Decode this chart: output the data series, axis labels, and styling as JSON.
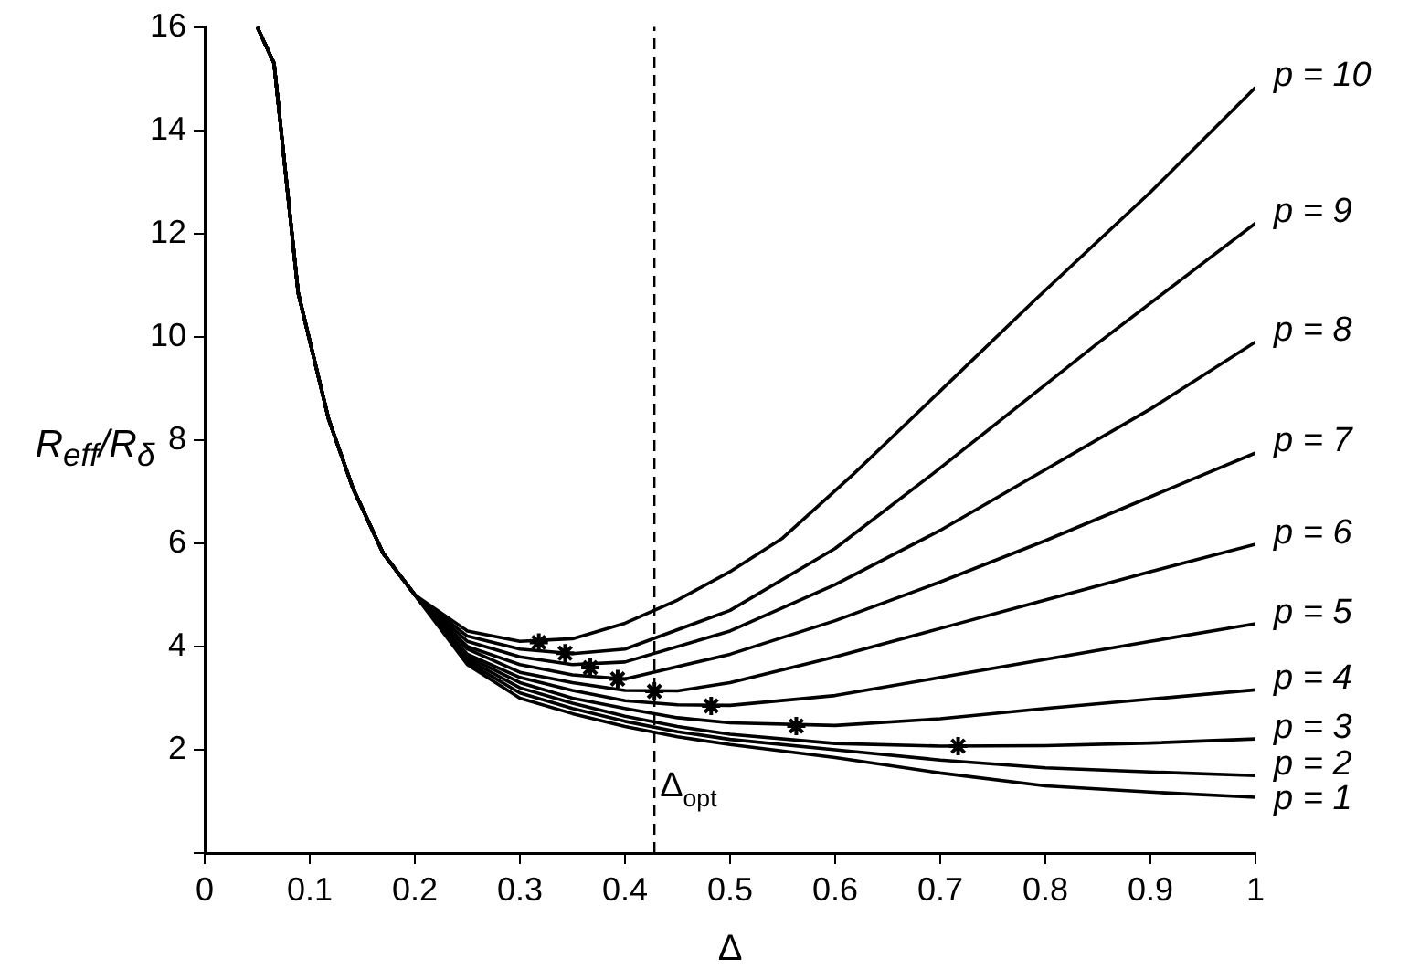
{
  "chart_data": {
    "type": "line",
    "xlabel": "Δ",
    "ylabel": "R$_{eff}$/R$_{δ}$",
    "xlim": [
      0,
      1
    ],
    "xticks": [
      0,
      0.1,
      0.2,
      0.3,
      0.4,
      0.5,
      0.6,
      0.7,
      0.8,
      0.9,
      1
    ],
    "ylim": [
      0,
      16
    ],
    "yticks": [
      {
        "value": 0,
        "label": null
      },
      2,
      4,
      6,
      8,
      10,
      12,
      14,
      16
    ],
    "grid": false,
    "legend": false,
    "marker": "none",
    "line_style": "solid",
    "series": [
      {
        "name": "p = 10",
        "color": "#000000",
        "x": [
          0.05,
          0.066,
          0.089,
          0.118,
          0.141,
          0.17,
          0.2,
          0.25,
          0.3,
          0.35,
          0.4,
          0.45,
          0.5,
          0.55,
          0.617,
          0.7,
          0.791,
          0.9,
          1
        ],
        "values": [
          16,
          15.3,
          10.85,
          8.4,
          7.07,
          5.8,
          5.0,
          4.3,
          4.1,
          4.15,
          4.45,
          4.9,
          5.45,
          6.1,
          7.33,
          8.95,
          10.73,
          12.8,
          14.83
        ]
      },
      {
        "name": "p = 9",
        "color": "#000000",
        "x": [
          0.05,
          0.066,
          0.089,
          0.118,
          0.141,
          0.17,
          0.2,
          0.25,
          0.3,
          0.35,
          0.4,
          0.5,
          0.6,
          0.692,
          0.849,
          1
        ],
        "values": [
          16,
          15.3,
          10.85,
          8.4,
          7.07,
          5.8,
          5.0,
          4.2,
          3.95,
          3.86,
          3.95,
          4.7,
          5.9,
          7.33,
          9.86,
          12.2
        ]
      },
      {
        "name": "p = 8",
        "color": "#000000",
        "x": [
          0.05,
          0.066,
          0.089,
          0.118,
          0.141,
          0.17,
          0.2,
          0.25,
          0.3,
          0.35,
          0.4,
          0.5,
          0.6,
          0.7,
          0.791,
          0.9,
          1
        ],
        "values": [
          16,
          15.3,
          10.85,
          8.4,
          7.07,
          5.8,
          5.0,
          4.1,
          3.8,
          3.65,
          3.7,
          4.3,
          5.2,
          6.25,
          7.32,
          8.6,
          9.9
        ]
      },
      {
        "name": "p = 7",
        "color": "#000000",
        "x": [
          0.05,
          0.066,
          0.089,
          0.118,
          0.141,
          0.17,
          0.2,
          0.25,
          0.3,
          0.35,
          0.4,
          0.5,
          0.6,
          0.7,
          0.8,
          0.9,
          1
        ],
        "values": [
          16,
          15.3,
          10.85,
          8.4,
          7.07,
          5.8,
          5.0,
          4.0,
          3.65,
          3.45,
          3.37,
          3.85,
          4.5,
          5.25,
          6.05,
          6.9,
          7.75
        ]
      },
      {
        "name": "p = 6",
        "color": "#000000",
        "x": [
          0.05,
          0.066,
          0.089,
          0.118,
          0.141,
          0.17,
          0.2,
          0.25,
          0.3,
          0.35,
          0.4,
          0.45,
          0.5,
          0.6,
          0.7,
          0.8,
          0.9,
          1
        ],
        "values": [
          16,
          15.3,
          10.85,
          8.4,
          7.07,
          5.8,
          5.0,
          3.95,
          3.5,
          3.3,
          3.15,
          3.14,
          3.3,
          3.8,
          4.35,
          4.9,
          5.45,
          5.98
        ]
      },
      {
        "name": "p = 5",
        "color": "#000000",
        "x": [
          0.05,
          0.066,
          0.089,
          0.118,
          0.141,
          0.17,
          0.2,
          0.25,
          0.3,
          0.35,
          0.4,
          0.45,
          0.5,
          0.6,
          0.7,
          0.8,
          0.9,
          1
        ],
        "values": [
          16,
          15.3,
          10.85,
          8.4,
          7.07,
          5.8,
          5.0,
          3.85,
          3.4,
          3.15,
          2.95,
          2.87,
          2.86,
          3.05,
          3.4,
          3.75,
          4.1,
          4.44
        ]
      },
      {
        "name": "p = 4",
        "color": "#000000",
        "x": [
          0.05,
          0.066,
          0.089,
          0.118,
          0.141,
          0.17,
          0.2,
          0.25,
          0.3,
          0.35,
          0.4,
          0.45,
          0.5,
          0.6,
          0.7,
          0.8,
          0.9,
          1
        ],
        "values": [
          16,
          15.3,
          10.85,
          8.4,
          7.07,
          5.8,
          5.0,
          3.8,
          3.3,
          3.0,
          2.8,
          2.62,
          2.52,
          2.47,
          2.6,
          2.8,
          2.98,
          3.16
        ]
      },
      {
        "name": "p = 3",
        "color": "#000000",
        "x": [
          0.05,
          0.066,
          0.089,
          0.118,
          0.141,
          0.17,
          0.2,
          0.25,
          0.3,
          0.35,
          0.4,
          0.45,
          0.5,
          0.6,
          0.7,
          0.8,
          0.9,
          1
        ],
        "values": [
          16,
          15.3,
          10.85,
          8.4,
          7.07,
          5.8,
          5.0,
          3.75,
          3.2,
          2.9,
          2.65,
          2.45,
          2.3,
          2.12,
          2.07,
          2.08,
          2.13,
          2.21
        ]
      },
      {
        "name": "p = 2",
        "color": "#000000",
        "x": [
          0.05,
          0.066,
          0.089,
          0.118,
          0.141,
          0.17,
          0.2,
          0.25,
          0.3,
          0.35,
          0.4,
          0.45,
          0.5,
          0.6,
          0.7,
          0.8,
          0.9,
          1
        ],
        "values": [
          16,
          15.3,
          10.85,
          8.4,
          7.07,
          5.8,
          5.0,
          3.7,
          3.1,
          2.8,
          2.55,
          2.35,
          2.2,
          2.0,
          1.8,
          1.65,
          1.57,
          1.5
        ]
      },
      {
        "name": "p = 1",
        "color": "#000000",
        "x": [
          0.05,
          0.066,
          0.089,
          0.118,
          0.141,
          0.17,
          0.2,
          0.25,
          0.3,
          0.35,
          0.4,
          0.45,
          0.5,
          0.6,
          0.7,
          0.8,
          0.9,
          1
        ],
        "values": [
          16,
          15.3,
          10.85,
          8.4,
          7.07,
          5.8,
          5.0,
          3.65,
          3.0,
          2.7,
          2.45,
          2.25,
          2.1,
          1.85,
          1.55,
          1.3,
          1.18,
          1.08
        ]
      },
      {
        "type": "scatter",
        "marker": "cross",
        "color": "#000000",
        "x": [
          0.318,
          0.343,
          0.367,
          0.393,
          0.428,
          0.482,
          0.563,
          0.717
        ],
        "values": [
          4.08,
          3.87,
          3.59,
          3.37,
          3.13,
          2.85,
          2.46,
          2.07
        ]
      }
    ],
    "ref_lines": [
      {
        "axis": "x",
        "value": 0.428,
        "label": "Δ$_{opt}$",
        "line_style": "dashed",
        "color": "#000000"
      }
    ]
  }
}
